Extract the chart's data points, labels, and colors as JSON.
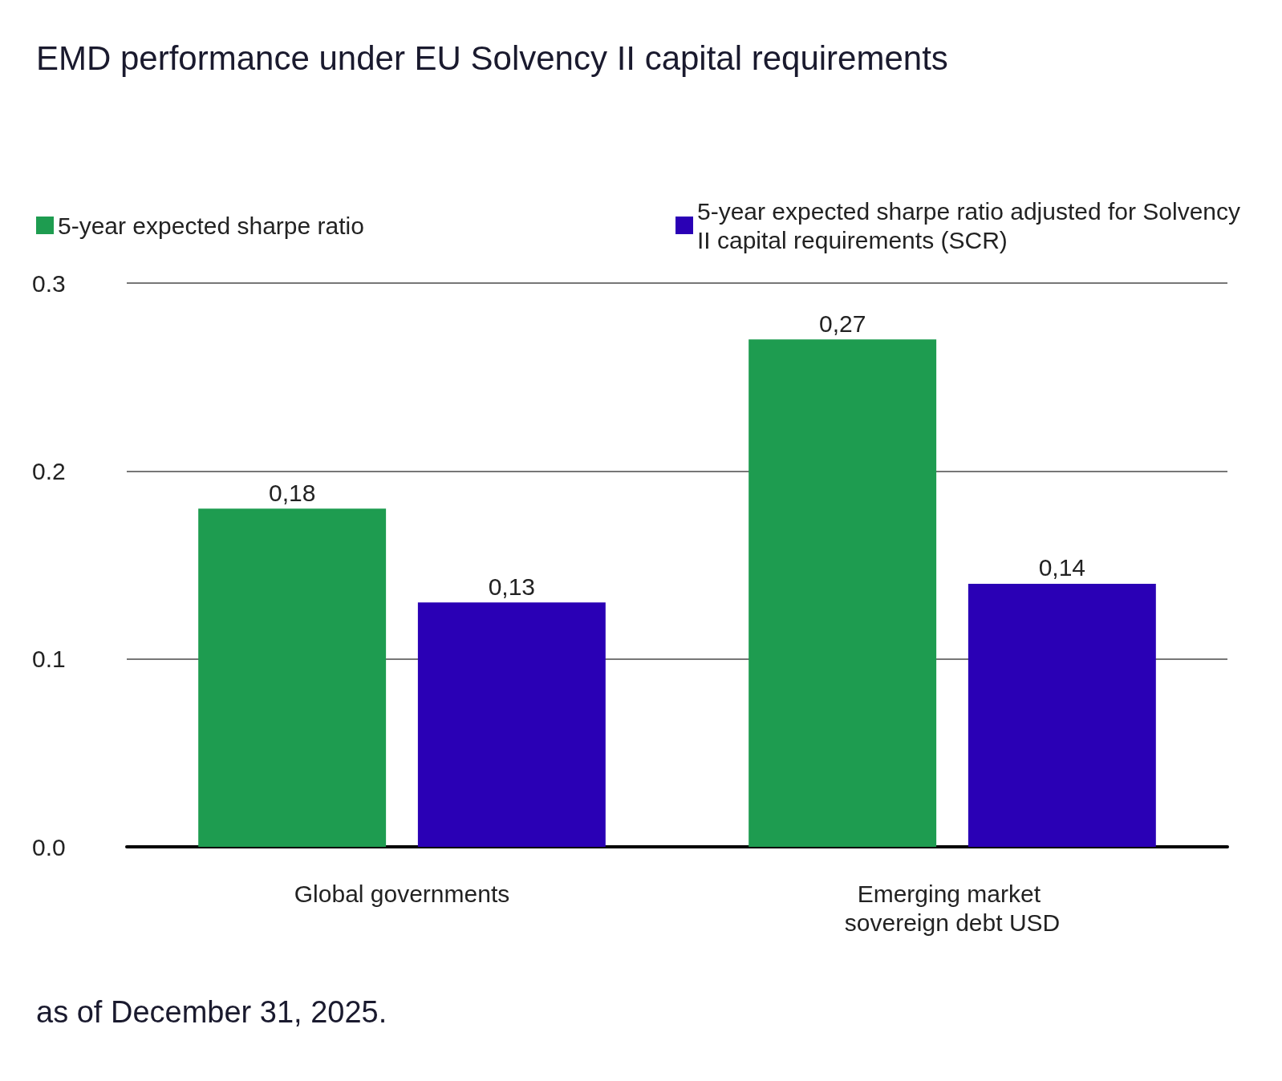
{
  "chart_data": {
    "type": "bar",
    "title": "EMD performance under EU Solvency II capital requirements",
    "categories": [
      "Global governments",
      "Emerging market sovereign debt USD"
    ],
    "series": [
      {
        "name": "5-year expected sharpe ratio",
        "color": "#1e9c50",
        "values": [
          0.18,
          0.27
        ],
        "value_labels": [
          "0,18",
          "0,27"
        ]
      },
      {
        "name": "5-year expected sharpe ratio adjusted for Solvency II capital requirements (SCR)",
        "color": "#2a00b5",
        "values": [
          0.13,
          0.14
        ],
        "value_labels": [
          "0,13",
          "0,14"
        ]
      }
    ],
    "ylim": [
      0,
      0.3
    ],
    "yticks": [
      {
        "value": 0,
        "label": "0.0"
      },
      0.1,
      0.2,
      0.3
    ],
    "grid": "y",
    "legend": "top left",
    "annotations": [
      "as of December 31, 2025."
    ]
  }
}
